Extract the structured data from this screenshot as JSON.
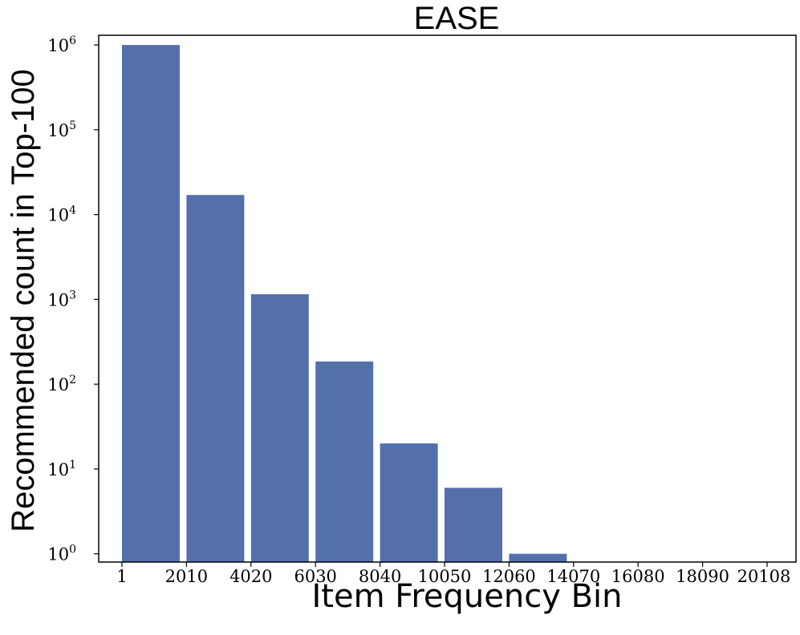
{
  "chart_data": {
    "type": "bar",
    "title": "EASE",
    "xlabel": "Item Frequency Bin",
    "ylabel": "Recommended count in Top-100",
    "y_scale": "log",
    "ylim": [
      0.8,
      1300000
    ],
    "grid": false,
    "legend": "none",
    "bar_color": "#5470ab",
    "x_tick_labels": [
      "1",
      "2010",
      "4020",
      "6030",
      "8040",
      "10050",
      "12060",
      "14070",
      "16080",
      "18090",
      "20108"
    ],
    "y_ticks": [
      {
        "base": "10",
        "exp": "0",
        "value": 1
      },
      {
        "base": "10",
        "exp": "1",
        "value": 10
      },
      {
        "base": "10",
        "exp": "2",
        "value": 100
      },
      {
        "base": "10",
        "exp": "3",
        "value": 1000
      },
      {
        "base": "10",
        "exp": "4",
        "value": 10000
      },
      {
        "base": "10",
        "exp": "5",
        "value": 100000
      },
      {
        "base": "10",
        "exp": "6",
        "value": 1000000
      }
    ],
    "bins": [
      {
        "from": "1",
        "to": "2010",
        "value": 1000000
      },
      {
        "from": "2010",
        "to": "4020",
        "value": 17000
      },
      {
        "from": "4020",
        "to": "6030",
        "value": 1150
      },
      {
        "from": "6030",
        "to": "8040",
        "value": 185
      },
      {
        "from": "8040",
        "to": "10050",
        "value": 20
      },
      {
        "from": "10050",
        "to": "12060",
        "value": 6
      },
      {
        "from": "12060",
        "to": "14070",
        "value": 1
      },
      {
        "from": "14070",
        "to": "16080",
        "value": 0
      },
      {
        "from": "16080",
        "to": "18090",
        "value": 0
      },
      {
        "from": "18090",
        "to": "20108",
        "value": 0
      }
    ]
  }
}
